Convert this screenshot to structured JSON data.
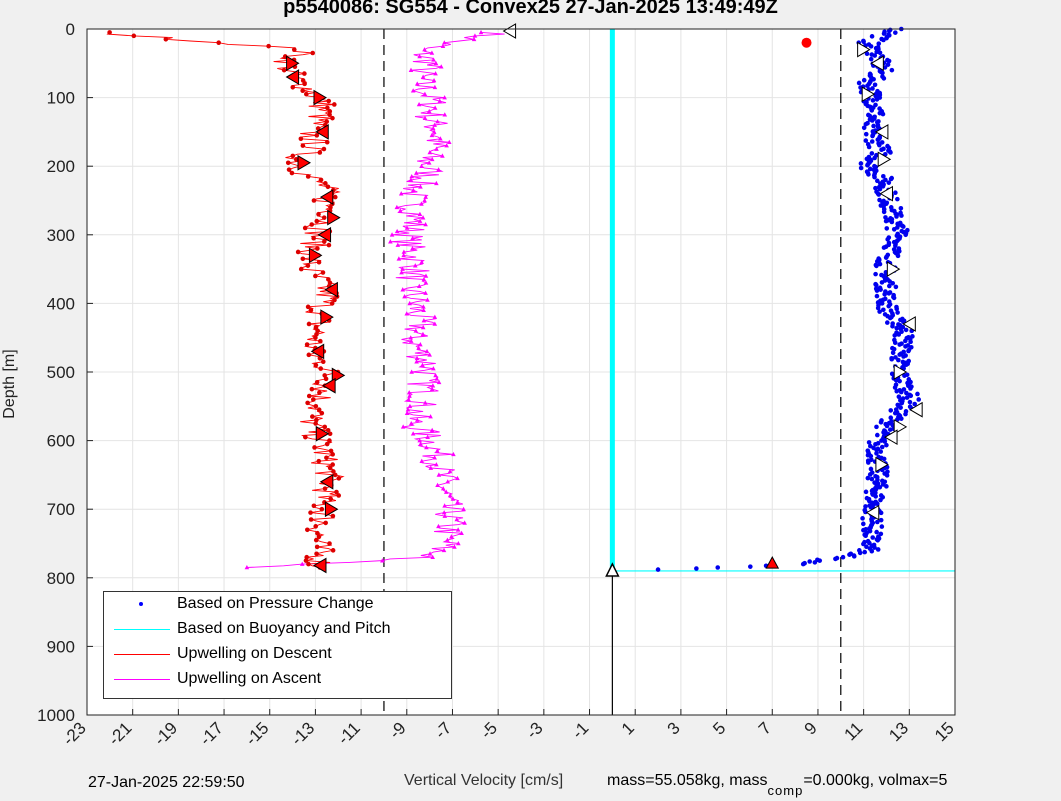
{
  "title": "p5540086: SG554 - Convex25 27-Jan-2025 13:49:49Z",
  "footer": {
    "timestamp": "27-Jan-2025 22:59:50",
    "mass_text": "mass=55.058kg, mass",
    "comp_sub": "comp",
    "comp_text": "=0.000kg, volmax=5"
  },
  "chart_data": {
    "type": "scatter",
    "xlabel": "Vertical Velocity [cm/s]",
    "ylabel": "Depth [m]",
    "xlim": [
      -23,
      15
    ],
    "ylim": [
      0,
      1000
    ],
    "y_reversed": true,
    "xticks": [
      -23,
      -21,
      -19,
      -17,
      -15,
      -13,
      -11,
      -9,
      -7,
      -5,
      -3,
      -1,
      1,
      3,
      5,
      7,
      9,
      11,
      13,
      15
    ],
    "yticks": [
      0,
      100,
      200,
      300,
      400,
      500,
      600,
      700,
      800,
      900,
      1000
    ],
    "grid": true,
    "legend_location": "bottom-left",
    "legend": [
      {
        "label": "Based on Pressure Change",
        "color": "#0000ff",
        "style": "dot"
      },
      {
        "label": "Based on Buoyancy and Pitch",
        "color": "#00ffff",
        "style": "line"
      },
      {
        "label": "Upwelling on Descent",
        "color": "#ff0000",
        "style": "line"
      },
      {
        "label": "Upwelling on Ascent",
        "color": "#ff00ff",
        "style": "line"
      }
    ],
    "reference_lines": {
      "dashed_x": [
        -10,
        10
      ],
      "solid_x_from_depth": {
        "x": 0,
        "from": 790,
        "to": 1000
      }
    },
    "buoyancy_pitch": {
      "x": 0,
      "depth_range": [
        0,
        790
      ],
      "bottom_segment": {
        "x": [
          0,
          15
        ],
        "depth": 790
      }
    },
    "pressure_change": {
      "depth": [
        0,
        20,
        40,
        60,
        80,
        100,
        120,
        140,
        160,
        180,
        200,
        220,
        240,
        260,
        280,
        300,
        320,
        340,
        360,
        380,
        400,
        420,
        440,
        460,
        480,
        500,
        520,
        540,
        560,
        580,
        600,
        620,
        640,
        660,
        680,
        700,
        720,
        740,
        760,
        770,
        780,
        785,
        788
      ],
      "x": [
        12.5,
        11.2,
        11.6,
        11.8,
        11.2,
        11.4,
        11.6,
        11.2,
        11.5,
        11.8,
        11.2,
        11.9,
        12.0,
        12.2,
        12.3,
        12.6,
        12.3,
        12.0,
        11.9,
        12.0,
        12.0,
        12.2,
        12.8,
        12.7,
        12.6,
        12.5,
        12.8,
        13.0,
        12.5,
        12.0,
        11.6,
        11.6,
        11.6,
        11.6,
        11.5,
        11.4,
        11.4,
        11.3,
        11.2,
        10.0,
        8.0,
        5.0,
        2.0
      ],
      "markers_near_surface": {
        "x": 8.5,
        "depth": 20
      },
      "bottom_marker": {
        "x": 7.0,
        "depth": 780
      }
    },
    "upwelling_descent": {
      "depth": [
        5,
        30,
        50,
        70,
        90,
        110,
        130,
        150,
        170,
        190,
        210,
        230,
        250,
        270,
        290,
        310,
        330,
        350,
        370,
        390,
        410,
        430,
        450,
        470,
        490,
        510,
        530,
        550,
        570,
        590,
        610,
        630,
        650,
        670,
        690,
        710,
        730,
        750,
        770,
        785
      ],
      "x": [
        -22.5,
        -13.5,
        -14.3,
        -14.0,
        -13.2,
        -12.7,
        -12.8,
        -13.3,
        -13.0,
        -13.8,
        -13.5,
        -12.6,
        -12.5,
        -12.3,
        -12.8,
        -13.0,
        -13.2,
        -13.3,
        -12.7,
        -12.5,
        -12.8,
        -12.9,
        -13.0,
        -13.2,
        -12.6,
        -12.4,
        -12.7,
        -12.9,
        -13.2,
        -13.0,
        -12.7,
        -12.6,
        -12.4,
        -12.5,
        -12.7,
        -12.6,
        -12.8,
        -12.9,
        -12.8,
        -12.8
      ]
    },
    "upwelling_ascent": {
      "depth": [
        5,
        30,
        50,
        70,
        90,
        110,
        130,
        150,
        170,
        190,
        210,
        230,
        250,
        270,
        290,
        310,
        330,
        350,
        370,
        390,
        410,
        430,
        450,
        470,
        490,
        510,
        530,
        550,
        570,
        590,
        610,
        630,
        650,
        670,
        690,
        710,
        730,
        750,
        770,
        785
      ],
      "x": [
        -5.0,
        -8.5,
        -8.0,
        -8.5,
        -8.2,
        -7.8,
        -8.0,
        -7.6,
        -7.8,
        -8.2,
        -8.0,
        -8.6,
        -8.8,
        -8.6,
        -8.8,
        -9.0,
        -8.7,
        -8.6,
        -8.9,
        -8.7,
        -8.6,
        -8.4,
        -8.8,
        -8.5,
        -8.0,
        -8.3,
        -8.2,
        -8.4,
        -8.8,
        -8.2,
        -7.8,
        -7.6,
        -7.5,
        -7.4,
        -7.3,
        -7.1,
        -7.2,
        -7.3,
        -8.0,
        -16.0
      ]
    },
    "triangle_markers_descent": [
      {
        "x": -14.0,
        "depth": 50
      },
      {
        "x": -14.0,
        "depth": 70
      },
      {
        "x": -12.8,
        "depth": 100
      },
      {
        "x": -12.7,
        "depth": 150
      },
      {
        "x": -13.5,
        "depth": 195
      },
      {
        "x": -12.5,
        "depth": 245
      },
      {
        "x": -12.2,
        "depth": 275
      },
      {
        "x": -12.6,
        "depth": 300
      },
      {
        "x": -13.0,
        "depth": 330
      },
      {
        "x": -12.3,
        "depth": 380
      },
      {
        "x": -12.5,
        "depth": 420
      },
      {
        "x": -12.9,
        "depth": 470
      },
      {
        "x": -12.0,
        "depth": 505
      },
      {
        "x": -12.4,
        "depth": 520
      },
      {
        "x": -12.7,
        "depth": 590
      },
      {
        "x": -12.5,
        "depth": 660
      },
      {
        "x": -12.3,
        "depth": 700
      },
      {
        "x": -12.8,
        "depth": 782
      }
    ],
    "triangle_markers_pressure": [
      {
        "x": 11.0,
        "depth": 30
      },
      {
        "x": 11.6,
        "depth": 50
      },
      {
        "x": 11.2,
        "depth": 95
      },
      {
        "x": 11.8,
        "depth": 150
      },
      {
        "x": 11.9,
        "depth": 190
      },
      {
        "x": 12.0,
        "depth": 240
      },
      {
        "x": 12.3,
        "depth": 350
      },
      {
        "x": 13.0,
        "depth": 430
      },
      {
        "x": 12.6,
        "depth": 500
      },
      {
        "x": 13.3,
        "depth": 555
      },
      {
        "x": 12.6,
        "depth": 580
      },
      {
        "x": 12.2,
        "depth": 595
      },
      {
        "x": 11.8,
        "depth": 635
      },
      {
        "x": 11.4,
        "depth": 705
      }
    ],
    "surface_marker_x": -4.5,
    "bottom_black_marker_x": 0
  }
}
